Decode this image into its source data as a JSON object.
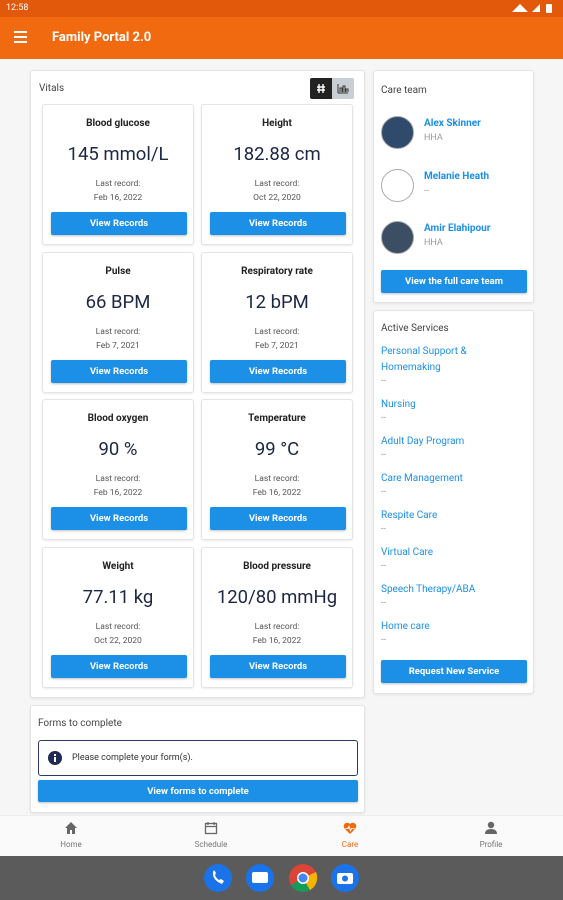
{
  "status_bar": {
    "time": "12:58"
  },
  "app_bar": {
    "title": "Family Portal 2.0"
  },
  "vitals": {
    "title": "Vitals",
    "tiles": [
      {
        "name": "Blood glucose",
        "value": "145 mmol/L",
        "record_label": "Last record:",
        "date": "Feb 16, 2022",
        "button": "View Records"
      },
      {
        "name": "Height",
        "value": "182.88 cm",
        "record_label": "Last record:",
        "date": "Oct 22, 2020",
        "button": "View Records"
      },
      {
        "name": "Pulse",
        "value": "66 BPM",
        "record_label": "Last record:",
        "date": "Feb 7, 2021",
        "button": "View Records"
      },
      {
        "name": "Respiratory rate",
        "value": "12 bPM",
        "record_label": "Last record:",
        "date": "Feb 7, 2021",
        "button": "View Records"
      },
      {
        "name": "Blood oxygen",
        "value": "90 %",
        "record_label": "Last record:",
        "date": "Feb 16, 2022",
        "button": "View Records"
      },
      {
        "name": "Temperature",
        "value": "99 °C",
        "record_label": "Last record:",
        "date": "Feb 16, 2022",
        "button": "View Records"
      },
      {
        "name": "Weight",
        "value": "77.11 kg",
        "record_label": "Last record:",
        "date": "Oct 22, 2020",
        "button": "View Records"
      },
      {
        "name": "Blood pressure",
        "value": "120/80 mmHg",
        "record_label": "Last record:",
        "date": "Feb 16, 2022",
        "button": "View Records"
      }
    ]
  },
  "care_team": {
    "title": "Care team",
    "members": [
      {
        "name": "Alex Skinner",
        "role": "HHA"
      },
      {
        "name": "Melanie Heath",
        "role": "--"
      },
      {
        "name": "Amir Elahipour",
        "role": "HHA"
      }
    ],
    "button": "View the full care team"
  },
  "active_services": {
    "title": "Active Services",
    "items": [
      {
        "name": "Personal Support & Homemaking",
        "status": "--"
      },
      {
        "name": "Nursing",
        "status": "--"
      },
      {
        "name": "Adult Day Program",
        "status": "--"
      },
      {
        "name": "Care Management",
        "status": "--"
      },
      {
        "name": "Respite Care",
        "status": "--"
      },
      {
        "name": "Virtual Care",
        "status": "--"
      },
      {
        "name": "Speech Therapy/ABA",
        "status": "--"
      },
      {
        "name": "Home care",
        "status": "--"
      }
    ],
    "button": "Request New Service"
  },
  "forms": {
    "title": "Forms to complete",
    "message": "Please complete your form(s).",
    "button": "View forms to complete"
  },
  "bottom_nav": {
    "items": [
      {
        "label": "Home"
      },
      {
        "label": "Schedule"
      },
      {
        "label": "Care"
      },
      {
        "label": "Profile"
      }
    ]
  }
}
